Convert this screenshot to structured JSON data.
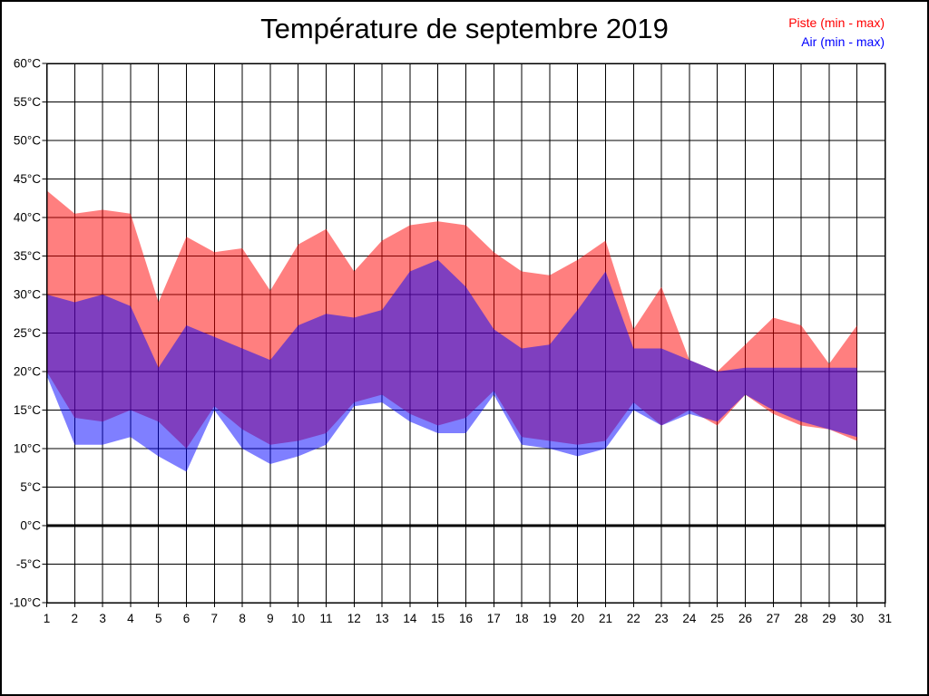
{
  "page": {
    "title": "Température de septembre 2019"
  },
  "legend": [
    {
      "label": "Piste (min - max)",
      "color": "#ff0000"
    },
    {
      "label": "Air (min - max)",
      "color": "#0000ff"
    }
  ],
  "chart_data": {
    "type": "area",
    "subtype": "min-max-bands",
    "title": "Température de septembre 2019",
    "xlabel": "",
    "ylabel": "",
    "xlim": [
      1,
      31
    ],
    "ylim": [
      -10,
      60
    ],
    "grid": true,
    "grid_color": "#000000",
    "zero_line": {
      "value": 0,
      "color": "#000000",
      "width": 3
    },
    "legend_position": "top-right",
    "x_ticks": [
      1,
      2,
      3,
      4,
      5,
      6,
      7,
      8,
      9,
      10,
      11,
      12,
      13,
      14,
      15,
      16,
      17,
      18,
      19,
      20,
      21,
      22,
      23,
      24,
      25,
      26,
      27,
      28,
      29,
      30,
      31
    ],
    "y_ticks": [
      "60°C",
      "55°C",
      "50°C",
      "45°C",
      "40°C",
      "35°C",
      "30°C",
      "25°C",
      "20°C",
      "15°C",
      "10°C",
      "5°C",
      "0°C",
      "-5°C",
      "-10°C"
    ],
    "y_tick_values": [
      60,
      55,
      50,
      45,
      40,
      35,
      30,
      25,
      20,
      15,
      10,
      5,
      0,
      -5,
      -10
    ],
    "x": [
      1,
      2,
      3,
      4,
      5,
      6,
      7,
      8,
      9,
      10,
      11,
      12,
      13,
      14,
      15,
      16,
      17,
      18,
      19,
      20,
      21,
      22,
      23,
      24,
      25,
      26,
      27,
      28,
      29,
      30
    ],
    "series": [
      {
        "name": "Piste (min - max)",
        "color": "#ff0000",
        "fill": "rgba(255,0,0,0.5)",
        "min": [
          20,
          14,
          13.5,
          15,
          13.5,
          10,
          15.5,
          12.5,
          10.5,
          11,
          12,
          16,
          17,
          14.5,
          13,
          14,
          17.5,
          11.5,
          11,
          10.5,
          11,
          16,
          13,
          15,
          13,
          17,
          14.5,
          13,
          12.5,
          11
        ],
        "max": [
          43.5,
          40.5,
          41,
          40.5,
          29,
          37.5,
          35.5,
          36,
          30.5,
          36.5,
          38.5,
          33,
          37,
          39,
          39.5,
          39,
          35.5,
          33,
          32.5,
          34.5,
          37,
          25.5,
          31,
          21.5,
          20,
          23.5,
          27,
          26,
          21,
          26
        ]
      },
      {
        "name": "Air (min - max)",
        "color": "#0000ff",
        "fill": "rgba(0,0,255,0.5)",
        "min": [
          19.5,
          10.5,
          10.5,
          11.5,
          9,
          7,
          15,
          10,
          8,
          9,
          10.5,
          15.5,
          16,
          13.5,
          12,
          12,
          17,
          10.5,
          10,
          9,
          10,
          15,
          13,
          14.5,
          13.5,
          17,
          15,
          13.5,
          12.5,
          11.5
        ],
        "max": [
          30,
          29,
          30,
          28.5,
          20.5,
          26,
          24.5,
          23,
          21.5,
          26,
          27.5,
          27,
          28,
          33,
          34.5,
          31,
          25.5,
          23,
          23.5,
          28,
          33,
          23,
          23,
          21.5,
          20,
          20.5,
          20.5,
          20.5,
          20.5,
          20.5
        ]
      }
    ]
  }
}
